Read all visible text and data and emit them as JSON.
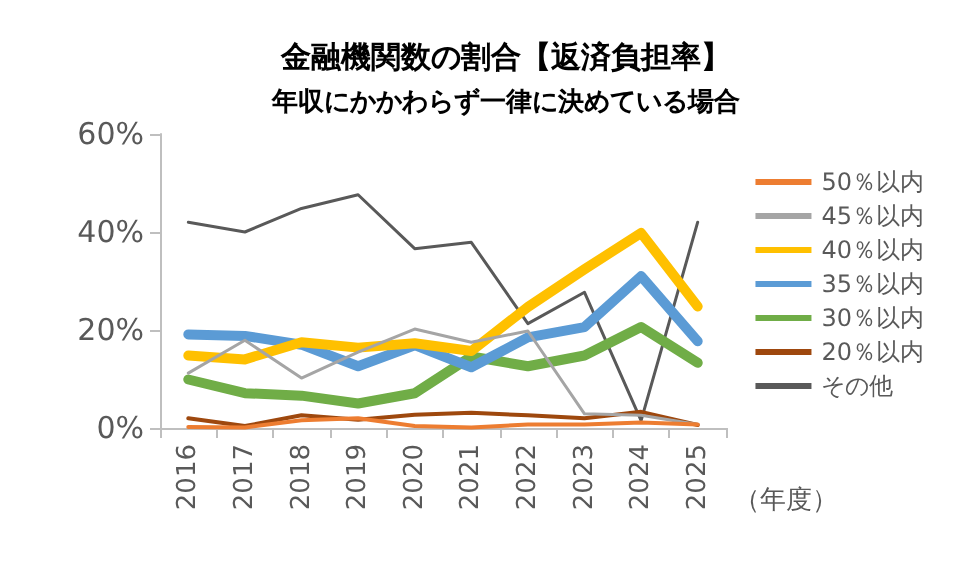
{
  "chart_data": {
    "type": "line",
    "title": "金融機関数の割合【返済負担率】",
    "subtitle": "年収にかかわらず一律に決めている場合",
    "xlabel": "（年度）",
    "categories": [
      "2016",
      "2017",
      "2018",
      "2019",
      "2020",
      "2021",
      "2022",
      "2023",
      "2024",
      "2025"
    ],
    "series": [
      {
        "name": "50％以内",
        "color": "#ed7d31",
        "values": [
          0.2,
          0.1,
          1.6,
          2.0,
          0.4,
          0.1,
          0.7,
          0.7,
          1.1,
          0.7
        ]
      },
      {
        "name": "45％以内",
        "color": "#a5a5a5",
        "values": [
          11.2,
          17.9,
          10.2,
          15.5,
          20.2,
          17.5,
          19.8,
          2.9,
          2.6,
          0.7
        ]
      },
      {
        "name": "40％以内",
        "color": "#ffc000",
        "values": [
          14.8,
          14.0,
          17.5,
          16.4,
          17.3,
          15.7,
          24.7,
          32.4,
          39.8,
          24.8
        ]
      },
      {
        "name": "35％以内",
        "color": "#5b9bd5",
        "values": [
          19.1,
          18.8,
          17.0,
          12.6,
          16.9,
          12.4,
          18.5,
          20.6,
          31.0,
          17.7
        ]
      },
      {
        "name": "30％以内",
        "color": "#70ad47",
        "values": [
          9.9,
          7.1,
          6.6,
          5.0,
          7.1,
          14.6,
          12.6,
          14.8,
          20.6,
          13.3
        ]
      },
      {
        "name": "20％以内",
        "color": "#9e480e",
        "values": [
          2.0,
          0.4,
          2.6,
          1.7,
          2.7,
          3.1,
          2.6,
          2.0,
          3.3,
          0.6
        ]
      },
      {
        "name": "その他",
        "color": "#595959",
        "values": [
          42.0,
          40.0,
          44.8,
          47.6,
          36.6,
          37.9,
          21.3,
          27.7,
          1.5,
          42.0
        ]
      }
    ],
    "ylim": [
      0,
      60
    ],
    "yticks": [
      {
        "value": 0,
        "label": "0%"
      },
      {
        "value": 20,
        "label": "20%"
      },
      {
        "value": 40,
        "label": "40%"
      },
      {
        "value": 60,
        "label": "60%"
      }
    ],
    "grid": false,
    "legend": "right",
    "marker": "none",
    "line_style": "solid"
  }
}
